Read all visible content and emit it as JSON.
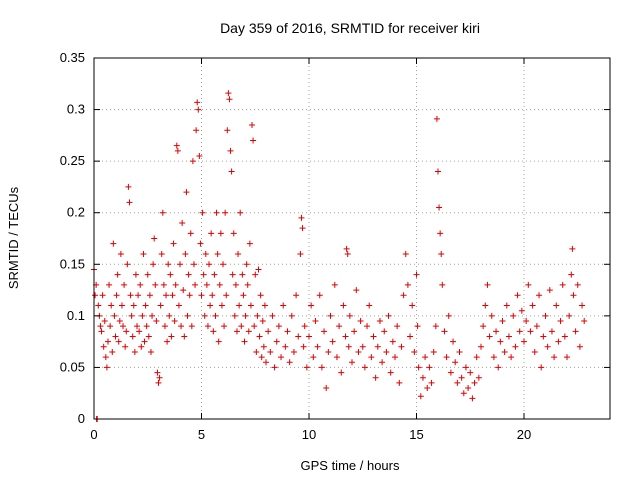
{
  "chart_data": {
    "type": "scatter",
    "title": "Day 359 of 2016, SRMTID for receiver kiri",
    "xlabel": "GPS time / hours",
    "ylabel": "SRMTID / TECUs",
    "xlim": [
      0,
      24
    ],
    "ylim": [
      0,
      0.35
    ],
    "xticks": [
      0,
      5,
      10,
      15,
      20
    ],
    "xtick_labels": [
      "0",
      "5",
      "10",
      "15",
      "20"
    ],
    "yticks": [
      0,
      0.05,
      0.1,
      0.15,
      0.2,
      0.25,
      0.3,
      0.35
    ],
    "ytick_labels": [
      "0",
      "0.05",
      "0.1",
      "0.15",
      "0.2",
      "0.25",
      "0.3",
      "0.35"
    ],
    "grid": true,
    "marker": "+",
    "color": "#e00000",
    "series": [
      {
        "name": "kiri",
        "points": [
          [
            0.0,
            0.145
          ],
          [
            0.05,
            0.12
          ],
          [
            0.1,
            0.13
          ],
          [
            0.12,
            0.0
          ],
          [
            0.15,
            0.0
          ],
          [
            0.2,
            0.11
          ],
          [
            0.25,
            0.1
          ],
          [
            0.3,
            0.09
          ],
          [
            0.35,
            0.085
          ],
          [
            0.4,
            0.12
          ],
          [
            0.45,
            0.07
          ],
          [
            0.5,
            0.095
          ],
          [
            0.55,
            0.06
          ],
          [
            0.6,
            0.05
          ],
          [
            0.65,
            0.075
          ],
          [
            0.7,
            0.13
          ],
          [
            0.75,
            0.09
          ],
          [
            0.8,
            0.11
          ],
          [
            0.85,
            0.065
          ],
          [
            0.9,
            0.17
          ],
          [
            0.95,
            0.1
          ],
          [
            1.0,
            0.08
          ],
          [
            1.05,
            0.12
          ],
          [
            1.1,
            0.14
          ],
          [
            1.15,
            0.075
          ],
          [
            1.2,
            0.095
          ],
          [
            1.25,
            0.16
          ],
          [
            1.3,
            0.11
          ],
          [
            1.35,
            0.09
          ],
          [
            1.4,
            0.13
          ],
          [
            1.45,
            0.07
          ],
          [
            1.5,
            0.085
          ],
          [
            1.55,
            0.15
          ],
          [
            1.6,
            0.225
          ],
          [
            1.65,
            0.21
          ],
          [
            1.7,
            0.12
          ],
          [
            1.75,
            0.1
          ],
          [
            1.8,
            0.08
          ],
          [
            1.85,
            0.11
          ],
          [
            1.9,
            0.065
          ],
          [
            1.95,
            0.14
          ],
          [
            2.0,
            0.09
          ],
          [
            2.05,
            0.12
          ],
          [
            2.1,
            0.085
          ],
          [
            2.15,
            0.13
          ],
          [
            2.2,
            0.07
          ],
          [
            2.25,
            0.1
          ],
          [
            2.3,
            0.16
          ],
          [
            2.35,
            0.075
          ],
          [
            2.4,
            0.11
          ],
          [
            2.45,
            0.09
          ],
          [
            2.5,
            0.14
          ],
          [
            2.55,
            0.08
          ],
          [
            2.6,
            0.12
          ],
          [
            2.65,
            0.065
          ],
          [
            2.7,
            0.1
          ],
          [
            2.75,
            0.15
          ],
          [
            2.8,
            0.175
          ],
          [
            2.85,
            0.13
          ],
          [
            2.9,
            0.095
          ],
          [
            2.95,
            0.045
          ],
          [
            3.0,
            0.035
          ],
          [
            3.05,
            0.04
          ],
          [
            3.1,
            0.11
          ],
          [
            3.15,
            0.16
          ],
          [
            3.2,
            0.2
          ],
          [
            3.25,
            0.13
          ],
          [
            3.3,
            0.09
          ],
          [
            3.35,
            0.12
          ],
          [
            3.4,
            0.075
          ],
          [
            3.45,
            0.15
          ],
          [
            3.5,
            0.1
          ],
          [
            3.55,
            0.14
          ],
          [
            3.6,
            0.08
          ],
          [
            3.65,
            0.12
          ],
          [
            3.7,
            0.17
          ],
          [
            3.75,
            0.095
          ],
          [
            3.8,
            0.13
          ],
          [
            3.85,
            0.265
          ],
          [
            3.9,
            0.26
          ],
          [
            3.95,
            0.11
          ],
          [
            4.0,
            0.15
          ],
          [
            4.05,
            0.09
          ],
          [
            4.1,
            0.19
          ],
          [
            4.15,
            0.125
          ],
          [
            4.2,
            0.08
          ],
          [
            4.25,
            0.16
          ],
          [
            4.3,
            0.22
          ],
          [
            4.35,
            0.1
          ],
          [
            4.4,
            0.14
          ],
          [
            4.45,
            0.12
          ],
          [
            4.5,
            0.18
          ],
          [
            4.55,
            0.09
          ],
          [
            4.6,
            0.25
          ],
          [
            4.65,
            0.15
          ],
          [
            4.7,
            0.13
          ],
          [
            4.75,
            0.28
          ],
          [
            4.8,
            0.307
          ],
          [
            4.85,
            0.3
          ],
          [
            4.9,
            0.255
          ],
          [
            4.95,
            0.17
          ],
          [
            5.0,
            0.12
          ],
          [
            5.05,
            0.2
          ],
          [
            5.1,
            0.14
          ],
          [
            5.15,
            0.1
          ],
          [
            5.2,
            0.16
          ],
          [
            5.25,
            0.13
          ],
          [
            5.3,
            0.09
          ],
          [
            5.35,
            0.15
          ],
          [
            5.4,
            0.11
          ],
          [
            5.45,
            0.18
          ],
          [
            5.5,
            0.12
          ],
          [
            5.55,
            0.085
          ],
          [
            5.6,
            0.14
          ],
          [
            5.65,
            0.1
          ],
          [
            5.7,
            0.2
          ],
          [
            5.75,
            0.16
          ],
          [
            5.8,
            0.075
          ],
          [
            5.85,
            0.13
          ],
          [
            5.9,
            0.18
          ],
          [
            5.95,
            0.11
          ],
          [
            6.0,
            0.15
          ],
          [
            6.05,
            0.09
          ],
          [
            6.1,
            0.2
          ],
          [
            6.15,
            0.12
          ],
          [
            6.2,
            0.28
          ],
          [
            6.25,
            0.316
          ],
          [
            6.3,
            0.31
          ],
          [
            6.35,
            0.26
          ],
          [
            6.4,
            0.24
          ],
          [
            6.45,
            0.14
          ],
          [
            6.5,
            0.18
          ],
          [
            6.55,
            0.1
          ],
          [
            6.6,
            0.13
          ],
          [
            6.65,
            0.085
          ],
          [
            6.7,
            0.16
          ],
          [
            6.75,
            0.11
          ],
          [
            6.8,
            0.2
          ],
          [
            6.85,
            0.09
          ],
          [
            6.9,
            0.14
          ],
          [
            6.95,
            0.12
          ],
          [
            7.0,
            0.075
          ],
          [
            7.05,
            0.1
          ],
          [
            7.1,
            0.15
          ],
          [
            7.15,
            0.13
          ],
          [
            7.2,
            0.085
          ],
          [
            7.25,
            0.17
          ],
          [
            7.3,
            0.11
          ],
          [
            7.35,
            0.285
          ],
          [
            7.4,
            0.27
          ],
          [
            7.45,
            0.09
          ],
          [
            7.5,
            0.14
          ],
          [
            7.55,
            0.065
          ],
          [
            7.6,
            0.1
          ],
          [
            7.65,
            0.145
          ],
          [
            7.7,
            0.08
          ],
          [
            7.75,
            0.12
          ],
          [
            7.8,
            0.06
          ],
          [
            7.85,
            0.095
          ],
          [
            7.9,
            0.07
          ],
          [
            7.95,
            0.11
          ],
          [
            8.0,
            0.055
          ],
          [
            8.1,
            0.085
          ],
          [
            8.2,
            0.065
          ],
          [
            8.3,
            0.1
          ],
          [
            8.4,
            0.05
          ],
          [
            8.5,
            0.075
          ],
          [
            8.6,
            0.09
          ],
          [
            8.7,
            0.06
          ],
          [
            8.8,
            0.11
          ],
          [
            8.9,
            0.07
          ],
          [
            9.0,
            0.085
          ],
          [
            9.1,
            0.055
          ],
          [
            9.2,
            0.1
          ],
          [
            9.3,
            0.065
          ],
          [
            9.4,
            0.12
          ],
          [
            9.5,
            0.08
          ],
          [
            9.6,
            0.16
          ],
          [
            9.65,
            0.195
          ],
          [
            9.7,
            0.185
          ],
          [
            9.75,
            0.07
          ],
          [
            9.8,
            0.09
          ],
          [
            9.9,
            0.05
          ],
          [
            10.0,
            0.08
          ],
          [
            10.1,
            0.11
          ],
          [
            10.2,
            0.06
          ],
          [
            10.3,
            0.095
          ],
          [
            10.4,
            0.07
          ],
          [
            10.5,
            0.12
          ],
          [
            10.6,
            0.05
          ],
          [
            10.7,
            0.085
          ],
          [
            10.8,
            0.03
          ],
          [
            10.9,
            0.065
          ],
          [
            11.0,
            0.1
          ],
          [
            11.1,
            0.075
          ],
          [
            11.2,
            0.13
          ],
          [
            11.3,
            0.06
          ],
          [
            11.4,
            0.09
          ],
          [
            11.5,
            0.045
          ],
          [
            11.6,
            0.11
          ],
          [
            11.7,
            0.08
          ],
          [
            11.75,
            0.165
          ],
          [
            11.8,
            0.16
          ],
          [
            11.85,
            0.07
          ],
          [
            11.9,
            0.1
          ],
          [
            12.0,
            0.055
          ],
          [
            12.1,
            0.085
          ],
          [
            12.2,
            0.125
          ],
          [
            12.3,
            0.065
          ],
          [
            12.4,
            0.095
          ],
          [
            12.5,
            0.07
          ],
          [
            12.6,
            0.05
          ],
          [
            12.7,
            0.09
          ],
          [
            12.8,
            0.11
          ],
          [
            12.9,
            0.06
          ],
          [
            13.0,
            0.08
          ],
          [
            13.1,
            0.04
          ],
          [
            13.2,
            0.07
          ],
          [
            13.3,
            0.095
          ],
          [
            13.4,
            0.055
          ],
          [
            13.5,
            0.085
          ],
          [
            13.6,
            0.065
          ],
          [
            13.7,
            0.1
          ],
          [
            13.8,
            0.045
          ],
          [
            13.9,
            0.075
          ],
          [
            14.0,
            0.06
          ],
          [
            14.1,
            0.09
          ],
          [
            14.2,
            0.035
          ],
          [
            14.3,
            0.07
          ],
          [
            14.4,
            0.12
          ],
          [
            14.5,
            0.16
          ],
          [
            14.6,
            0.13
          ],
          [
            14.7,
            0.08
          ],
          [
            14.8,
            0.11
          ],
          [
            14.9,
            0.065
          ],
          [
            15.0,
            0.14
          ],
          [
            15.05,
            0.09
          ],
          [
            15.1,
            0.05
          ],
          [
            15.2,
            0.022
          ],
          [
            15.3,
            0.04
          ],
          [
            15.4,
            0.06
          ],
          [
            15.5,
            0.03
          ],
          [
            15.6,
            0.05
          ],
          [
            15.7,
            0.035
          ],
          [
            15.8,
            0.065
          ],
          [
            15.9,
            0.09
          ],
          [
            15.95,
            0.291
          ],
          [
            16.0,
            0.24
          ],
          [
            16.05,
            0.205
          ],
          [
            16.1,
            0.18
          ],
          [
            16.15,
            0.16
          ],
          [
            16.2,
            0.13
          ],
          [
            16.3,
            0.085
          ],
          [
            16.4,
            0.06
          ],
          [
            16.5,
            0.1
          ],
          [
            16.6,
            0.045
          ],
          [
            16.7,
            0.075
          ],
          [
            16.8,
            0.055
          ],
          [
            16.9,
            0.035
          ],
          [
            17.0,
            0.065
          ],
          [
            17.1,
            0.04
          ],
          [
            17.2,
            0.025
          ],
          [
            17.3,
            0.05
          ],
          [
            17.4,
            0.03
          ],
          [
            17.5,
            0.045
          ],
          [
            17.6,
            0.02
          ],
          [
            17.7,
            0.035
          ],
          [
            17.8,
            0.06
          ],
          [
            17.9,
            0.04
          ],
          [
            18.0,
            0.07
          ],
          [
            18.1,
            0.09
          ],
          [
            18.2,
            0.11
          ],
          [
            18.3,
            0.13
          ],
          [
            18.4,
            0.08
          ],
          [
            18.5,
            0.1
          ],
          [
            18.6,
            0.06
          ],
          [
            18.7,
            0.085
          ],
          [
            18.8,
            0.05
          ],
          [
            18.9,
            0.075
          ],
          [
            19.0,
            0.095
          ],
          [
            19.1,
            0.065
          ],
          [
            19.2,
            0.11
          ],
          [
            19.3,
            0.08
          ],
          [
            19.4,
            0.06
          ],
          [
            19.5,
            0.1
          ],
          [
            19.6,
            0.07
          ],
          [
            19.7,
            0.12
          ],
          [
            19.8,
            0.085
          ],
          [
            19.9,
            0.105
          ],
          [
            20.0,
            0.075
          ],
          [
            20.1,
            0.095
          ],
          [
            20.2,
            0.13
          ],
          [
            20.3,
            0.085
          ],
          [
            20.4,
            0.11
          ],
          [
            20.5,
            0.065
          ],
          [
            20.6,
            0.09
          ],
          [
            20.7,
            0.12
          ],
          [
            20.8,
            0.05
          ],
          [
            20.9,
            0.08
          ],
          [
            21.0,
            0.1
          ],
          [
            21.1,
            0.07
          ],
          [
            21.2,
            0.125
          ],
          [
            21.3,
            0.085
          ],
          [
            21.4,
            0.06
          ],
          [
            21.5,
            0.11
          ],
          [
            21.6,
            0.075
          ],
          [
            21.7,
            0.095
          ],
          [
            21.8,
            0.13
          ],
          [
            21.9,
            0.08
          ],
          [
            22.0,
            0.06
          ],
          [
            22.1,
            0.1
          ],
          [
            22.2,
            0.14
          ],
          [
            22.25,
            0.165
          ],
          [
            22.3,
            0.12
          ],
          [
            22.4,
            0.085
          ],
          [
            22.5,
            0.13
          ],
          [
            22.6,
            0.07
          ],
          [
            22.7,
            0.11
          ],
          [
            22.8,
            0.095
          ]
        ]
      }
    ]
  }
}
